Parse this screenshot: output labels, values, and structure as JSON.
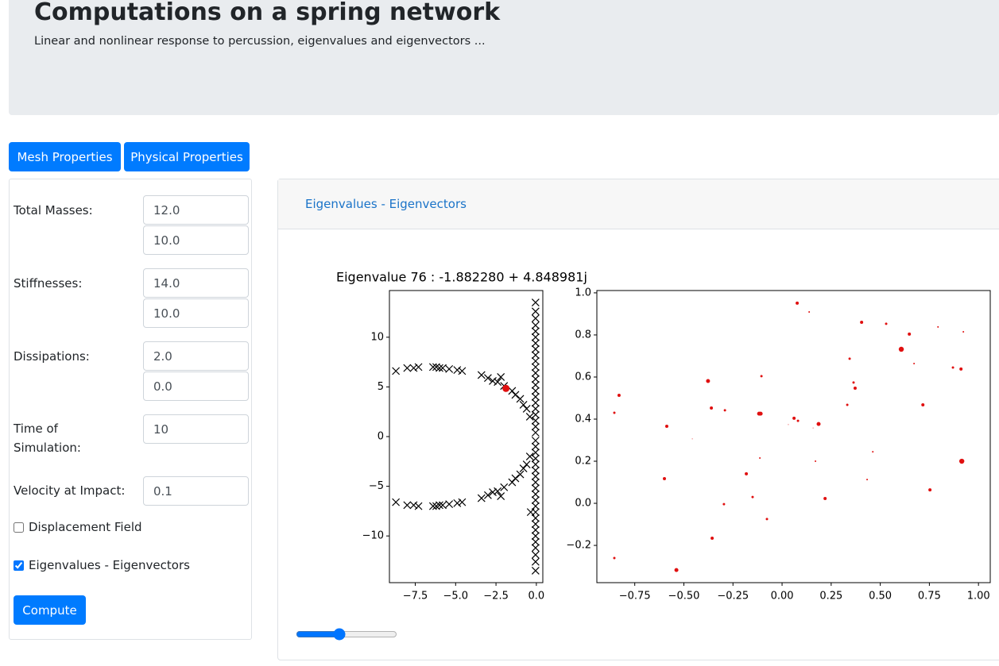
{
  "header": {
    "title": "Computations on a spring network",
    "subtitle": "Linear and nonlinear response to percussion, eigenvalues and eigenvectors ..."
  },
  "tabs": [
    "Mesh Properties",
    "Physical Properties"
  ],
  "form": {
    "fields": [
      {
        "label": "Total Masses:",
        "inputs": [
          "12.0",
          "10.0"
        ]
      },
      {
        "label": "Stiffnesses:",
        "inputs": [
          "14.0",
          "10.0"
        ]
      },
      {
        "label": "Dissipations:",
        "inputs": [
          "2.0",
          "0.0"
        ]
      },
      {
        "label": "Time of Simulation:",
        "inputs": [
          "10"
        ]
      },
      {
        "label": "Velocity at Impact:",
        "inputs": [
          "0.1"
        ]
      }
    ],
    "checkboxes": [
      {
        "label": "Displacement Field",
        "checked": false
      },
      {
        "label": "Eigenvalues - Eigenvectors",
        "checked": true
      }
    ],
    "button": "Compute"
  },
  "card": {
    "tab": "Eigenvalues - Eigenvectors"
  },
  "chart_data": [
    {
      "type": "scatter",
      "title": "Eigenvalue 76 : -1.882280 + 4.848981j",
      "xlim": [
        -9.1,
        0.4
      ],
      "ylim": [
        -14.7,
        14.7
      ],
      "xticks": [
        {
          "value": -7.5,
          "label": "−7.5"
        },
        {
          "value": -5,
          "label": "−5.0"
        },
        {
          "value": -2.5,
          "label": "−2.5"
        },
        {
          "value": 0,
          "label": "0.0"
        }
      ],
      "yticks": [
        10,
        5,
        0,
        {
          "value": -5,
          "label": "−5"
        },
        {
          "value": -10,
          "label": "−10"
        }
      ],
      "series": [
        {
          "color": "#000000",
          "marker": "x",
          "x": [
            -8.7,
            -8.0,
            -7.6,
            -7.3,
            -6.4,
            -6.2,
            -6.0,
            -5.8,
            -5.4,
            -4.9,
            -4.6,
            -3.4,
            -3.0,
            -2.7,
            -2.4,
            -2.2,
            -2.0,
            -1.5,
            -1.3,
            -1.0,
            -0.8,
            -0.6,
            -0.4,
            -8.7,
            -8.0,
            -7.6,
            -7.3,
            -6.4,
            -6.2,
            -6.0,
            -5.8,
            -5.4,
            -4.9,
            -4.6,
            -3.4,
            -3.0,
            -2.7,
            -2.4,
            -2.2,
            -2.0,
            -1.5,
            -1.3,
            -1.0,
            -0.8,
            -0.6,
            -0.4,
            -0.35,
            -0.05,
            -0.05,
            -0.05,
            -0.05,
            -0.05,
            -0.05,
            -0.05,
            -0.05,
            -0.05,
            -0.05,
            -0.05,
            -0.05,
            -0.05,
            -0.05,
            -0.05,
            -0.05,
            -0.05,
            -0.05,
            -0.05,
            -0.05,
            -0.05,
            -0.05,
            -0.05,
            -0.05,
            -0.05,
            -0.05,
            -0.05,
            -0.05,
            -0.05,
            -0.05,
            -0.05,
            -0.05,
            -0.05,
            -0.05,
            -0.05,
            -0.05,
            -0.05,
            -0.05,
            -0.05,
            -0.05,
            -0.05,
            -0.05,
            -0.05,
            -0.05
          ],
          "values": [
            6.6,
            6.9,
            6.9,
            7.0,
            7.0,
            7.0,
            6.9,
            6.9,
            6.8,
            6.7,
            6.6,
            6.2,
            5.9,
            5.6,
            5.5,
            6.0,
            5.1,
            4.6,
            4.2,
            3.8,
            3.2,
            2.8,
            2.0,
            -6.6,
            -6.9,
            -6.9,
            -7.0,
            -7.0,
            -7.0,
            -6.9,
            -6.9,
            -6.8,
            -6.7,
            -6.6,
            -6.2,
            -5.9,
            -5.6,
            -5.5,
            -6.0,
            -5.1,
            -4.6,
            -4.2,
            -3.8,
            -3.2,
            -2.8,
            -2.0,
            -7.6,
            13.5,
            12.6,
            11.9,
            11.2,
            10.6,
            10.0,
            9.4,
            8.8,
            8.2,
            7.6,
            7.0,
            6.4,
            5.8,
            5.2,
            4.6,
            4.0,
            3.4,
            2.8,
            2.2,
            1.6,
            1.0,
            0.4,
            -13.5,
            -12.6,
            -11.9,
            -11.2,
            -10.6,
            -10.0,
            -9.4,
            -8.8,
            -8.2,
            -7.6,
            -7.0,
            -6.4,
            -5.8,
            -5.2,
            -4.6,
            -4.0,
            -3.4,
            -2.8,
            -2.2,
            -1.6,
            -1.0,
            -0.4
          ]
        },
        {
          "color": "#e01010",
          "marker": "o",
          "x": [
            -1.88228
          ],
          "values": [
            4.848981
          ]
        }
      ]
    },
    {
      "type": "scatter",
      "xlim": [
        -0.943,
        1.06
      ],
      "ylim": [
        -0.377,
        1.011
      ],
      "xticks": [
        {
          "value": -0.75,
          "label": "−0.75"
        },
        {
          "value": -0.5,
          "label": "−0.50"
        },
        {
          "value": -0.25,
          "label": "−0.25"
        },
        {
          "value": 0,
          "label": "0.00"
        },
        0.25,
        {
          "value": 0.5,
          "label": "0.50"
        },
        0.75,
        {
          "value": 1,
          "label": "1.00"
        }
      ],
      "yticks": [
        {
          "value": 1,
          "label": "1.0"
        },
        0.8,
        0.6,
        0.4,
        0.2,
        {
          "value": 0,
          "label": "0.0"
        },
        {
          "value": -0.2,
          "label": "−0.2"
        }
      ],
      "series": [
        {
          "color": "#e01010",
          "marker": "o",
          "x": [
            0.077,
            0.138,
            0.405,
            0.53,
            0.648,
            0.794,
            0.923,
            0.607,
            0.344,
            0.672,
            0.87,
            0.911,
            -0.377,
            -0.105,
            0.364,
            0.372,
            -0.83,
            -0.854,
            -0.36,
            -0.291,
            -0.117,
            -0.109,
            0.061,
            0.081,
            0.032,
            0.158,
            0.186,
            0.332,
            0.717,
            -0.587,
            -0.457,
            0.462,
            -0.113,
            0.17,
            0.915,
            -0.599,
            -0.182,
            0.433,
            -0.15,
            0.219,
            0.753,
            -0.296,
            -0.077,
            -0.356,
            -0.854,
            -0.538
          ],
          "values": [
            0.951,
            0.909,
            0.86,
            0.853,
            0.804,
            0.838,
            0.815,
            0.732,
            0.687,
            0.664,
            0.645,
            0.638,
            0.581,
            0.604,
            0.574,
            0.547,
            0.513,
            0.43,
            0.453,
            0.442,
            0.426,
            0.426,
            0.404,
            0.392,
            0.374,
            0.358,
            0.377,
            0.468,
            0.468,
            0.366,
            0.306,
            0.245,
            0.215,
            0.2,
            0.2,
            0.117,
            0.14,
            0.113,
            0.03,
            0.023,
            0.064,
            -0.004,
            -0.075,
            -0.166,
            -0.26,
            -0.317
          ],
          "sizes": [
            2,
            1,
            2,
            1.5,
            2,
            1,
            1,
            3.2,
            1.5,
            1,
            1.5,
            2,
            2.5,
            1.5,
            1.5,
            2,
            2,
            1.5,
            2,
            1.5,
            2.5,
            2.5,
            2,
            1.5,
            0.5,
            0.5,
            2.5,
            1.5,
            2,
            2,
            0.5,
            1,
            1,
            1,
            3.2,
            2,
            2,
            1,
            1.5,
            2,
            2,
            1.5,
            1.5,
            2,
            1.5,
            2.5
          ]
        }
      ]
    }
  ]
}
